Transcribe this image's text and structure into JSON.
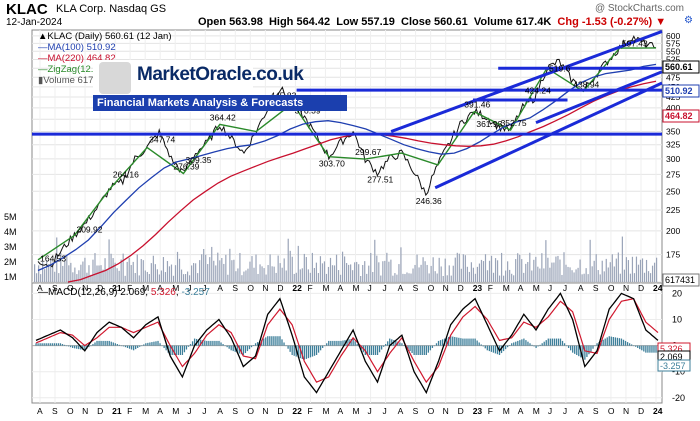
{
  "header": {
    "ticker": "KLAC",
    "company": "KLA Corp. Nasdaq GS",
    "date": "12-Jan-2024",
    "copyright": "@ StockCharts.com",
    "open": "Open 563.98",
    "high": "High 564.42",
    "low": "Low 557.19",
    "close": "Close 560.61",
    "volume": "Volume 617.4K",
    "chg": "Chg -1.53 (-0.27%)",
    "chg_arrow": "▼",
    "settings_icon": "gear-icon"
  },
  "watermark": {
    "title": "MarketOracle.co.uk",
    "subtitle": "Financial Markets Analysis & Forecasts"
  },
  "legend": {
    "line1": "▲KLAC (Daily) 560.61 (12 Jan)",
    "line2": "—MA(100) 510.92",
    "line3": "—MA(220) 464.82",
    "line4": "—ZigZag(12.21%)",
    "line5": "▮Volume 617,431"
  },
  "macd_legend": {
    "name": "—MACD(12,26,9)",
    "v1": "2.069",
    "v2": "5.326",
    "v3": "-3.257"
  },
  "colors": {
    "price": "#111111",
    "ma100": "#1f3fb0",
    "ma220": "#c8102e",
    "zigzag": "#2a8a2a",
    "trend": "#1a2ad8",
    "volume": "#9aa4b8",
    "macd": "#000000",
    "signal": "#d0182e",
    "hist": "#3d7f9a"
  },
  "chart_data": [
    {
      "type": "line",
      "title": "KLAC (Daily)",
      "scale": "log",
      "x_labels": [
        "A",
        "S",
        "O",
        "N",
        "D",
        "21",
        "F",
        "M",
        "A",
        "M",
        "J",
        "J",
        "A",
        "S",
        "O",
        "N",
        "D",
        "22",
        "F",
        "M",
        "A",
        "M",
        "J",
        "J",
        "A",
        "S",
        "O",
        "N",
        "D",
        "23",
        "F",
        "M",
        "A",
        "M",
        "J",
        "J",
        "A",
        "S",
        "O",
        "N",
        "D",
        "24"
      ],
      "y_ticks": [
        150,
        175,
        200,
        225,
        250,
        275,
        300,
        325,
        350,
        375,
        400,
        425,
        450,
        475,
        500,
        525,
        550,
        575,
        600
      ],
      "ylim": [
        150,
        620
      ],
      "series": [
        {
          "name": "KLAC",
          "values": [
            170,
            164.53,
            180,
            195,
            209.92,
            230,
            255,
            264.16,
            300,
            320,
            347.74,
            300,
            276.39,
            310,
            330,
            364.42,
            335,
            309.35,
            350,
            400,
            445.83,
            410,
            378.39,
            340,
            303.7,
            330,
            350,
            299.67,
            277.51,
            300,
            310,
            280,
            246.36,
            290,
            330,
            370,
            391.46,
            380,
            360,
            352.75,
            400,
            424.24,
            500,
            519.6,
            470,
            438.94,
            480,
            520,
            560,
            597.43,
            575,
            560.61
          ]
        },
        {
          "name": "MA(100)",
          "values": [
            160,
            165,
            172,
            180,
            190,
            205,
            222,
            238,
            255,
            270,
            285,
            295,
            300,
            306,
            312,
            318,
            322,
            325,
            332,
            342,
            355,
            365,
            370,
            372,
            368,
            362,
            355,
            345,
            335,
            325,
            318,
            312,
            308,
            310,
            318,
            330,
            345,
            360,
            370,
            378,
            395,
            415,
            438,
            460,
            475,
            485,
            490,
            495,
            505,
            510.92
          ]
        },
        {
          "name": "MA(220)",
          "values": [
            150,
            152,
            156,
            160,
            166,
            174,
            184,
            196,
            210,
            224,
            238,
            250,
            262,
            272,
            280,
            288,
            296,
            303,
            310,
            318,
            326,
            334,
            340,
            344,
            345,
            344,
            341,
            337,
            332,
            328,
            325,
            323,
            322,
            323,
            326,
            332,
            340,
            350,
            360,
            372,
            385,
            400,
            415,
            428,
            440,
            450,
            458,
            464.82
          ]
        }
      ],
      "annotations": [
        "164.53",
        "209.92",
        "264.16",
        "347.74",
        "276.39",
        "309.35",
        "364.42",
        "445.83",
        "378.39",
        "303.70",
        "299.67",
        "277.51",
        "391.46",
        "246.36",
        "424.24",
        "361.93",
        "352.75",
        "519.6",
        "438.94",
        "597.43"
      ],
      "price_labels": [
        "560.61",
        "510.92",
        "464.82"
      ],
      "volume_ticks": [
        "5M",
        "4M",
        "3M",
        "2M",
        "1M"
      ],
      "volume_last": "617431"
    },
    {
      "type": "line",
      "title": "MACD(12,26,9)",
      "y_ticks": [
        20,
        10,
        0,
        -10,
        -20
      ],
      "ylim": [
        -22,
        24
      ],
      "series": [
        {
          "name": "MACD",
          "values": [
            2,
            4,
            6,
            3,
            -2,
            5,
            9,
            7,
            3,
            8,
            11,
            -4,
            -12,
            0,
            6,
            10,
            3,
            -8,
            -4,
            12,
            18,
            4,
            -12,
            -18,
            -10,
            -2,
            6,
            -6,
            -14,
            0,
            4,
            -10,
            -18,
            -6,
            8,
            14,
            18,
            8,
            -2,
            4,
            12,
            6,
            14,
            20,
            10,
            -8,
            -2,
            14,
            20,
            18,
            6,
            2
          ]
        },
        {
          "name": "Signal",
          "values": [
            1,
            3,
            5,
            4,
            0,
            3,
            7,
            7,
            5,
            7,
            9,
            0,
            -8,
            -3,
            4,
            8,
            5,
            -4,
            -5,
            8,
            14,
            8,
            -6,
            -14,
            -12,
            -4,
            3,
            -2,
            -10,
            -3,
            3,
            -6,
            -14,
            -8,
            4,
            11,
            15,
            10,
            2,
            3,
            9,
            7,
            11,
            17,
            13,
            -2,
            -3,
            10,
            17,
            18,
            9,
            5
          ]
        }
      ],
      "last_values": [
        "5.326",
        "2.069",
        "-3.257"
      ]
    }
  ]
}
